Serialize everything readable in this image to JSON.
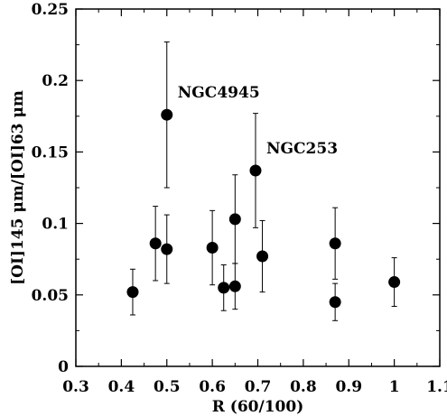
{
  "chart_data": {
    "type": "scatter",
    "xlabel": "R (60/100)",
    "ylabel": "[OI]145 μm/[OI]63 μm",
    "xlim": [
      0.3,
      1.1
    ],
    "ylim": [
      0,
      0.25
    ],
    "xticks": [
      "0.3",
      "0.4",
      "0.5",
      "0.6",
      "0.7",
      "0.8",
      "0.9",
      "1",
      "1.1"
    ],
    "yticks": [
      "0",
      "0.05",
      "0.1",
      "0.15",
      "0.2",
      "0.25"
    ],
    "grid": false,
    "points": [
      {
        "x": 0.425,
        "y": 0.052,
        "err": 0.016
      },
      {
        "x": 0.475,
        "y": 0.086,
        "err": 0.026
      },
      {
        "x": 0.5,
        "y": 0.082,
        "err": 0.024
      },
      {
        "x": 0.5,
        "y": 0.176,
        "err": 0.051,
        "label": "NGC4945"
      },
      {
        "x": 0.6,
        "y": 0.083,
        "err": 0.026
      },
      {
        "x": 0.625,
        "y": 0.055,
        "err": 0.016
      },
      {
        "x": 0.65,
        "y": 0.056,
        "err": 0.016
      },
      {
        "x": 0.65,
        "y": 0.103,
        "err": 0.031
      },
      {
        "x": 0.695,
        "y": 0.137,
        "err": 0.04,
        "label": "NGC253"
      },
      {
        "x": 0.71,
        "y": 0.077,
        "err": 0.025
      },
      {
        "x": 0.87,
        "y": 0.086,
        "err": 0.025
      },
      {
        "x": 0.87,
        "y": 0.045,
        "err": 0.013
      },
      {
        "x": 1.0,
        "y": 0.059,
        "err": 0.017
      }
    ]
  }
}
